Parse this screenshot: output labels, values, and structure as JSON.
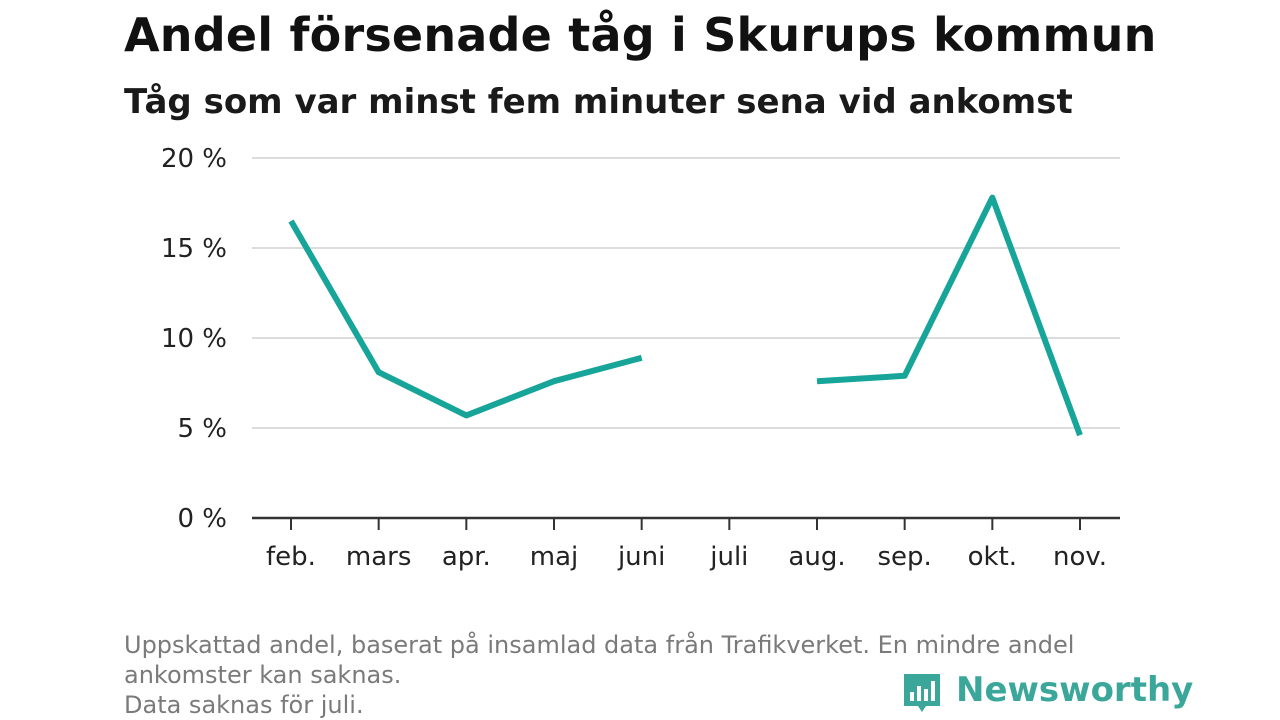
{
  "header": {
    "title": "Andel försenade tåg i Skurups kommun",
    "subtitle": "Tåg som var minst fem minuter sena vid ankomst"
  },
  "chart_data": {
    "type": "line",
    "categories": [
      "feb.",
      "mars",
      "apr.",
      "maj",
      "juni",
      "juli",
      "aug.",
      "sep.",
      "okt.",
      "nov."
    ],
    "series": [
      {
        "values": [
          16.5,
          8.1,
          5.7,
          7.6,
          8.9,
          null,
          7.6,
          7.9,
          17.8,
          4.6
        ]
      }
    ],
    "ylim": [
      0,
      20
    ],
    "yticks": [
      0,
      5,
      10,
      15,
      20
    ],
    "ytick_labels": [
      "0 %",
      "5 %",
      "10 %",
      "15 %",
      "20 %"
    ],
    "grid": true,
    "line_color": "#17a59a"
  },
  "footnote": {
    "line1": "Uppskattad andel, baserat på insamlad data från Trafikverket. En mindre andel",
    "line2": "ankomster kan saknas.",
    "line3": "Data saknas för juli."
  },
  "brand": {
    "name": "Newsworthy",
    "icon": "newsworthy-bar-chart-icon",
    "color": "#3aa79a"
  }
}
